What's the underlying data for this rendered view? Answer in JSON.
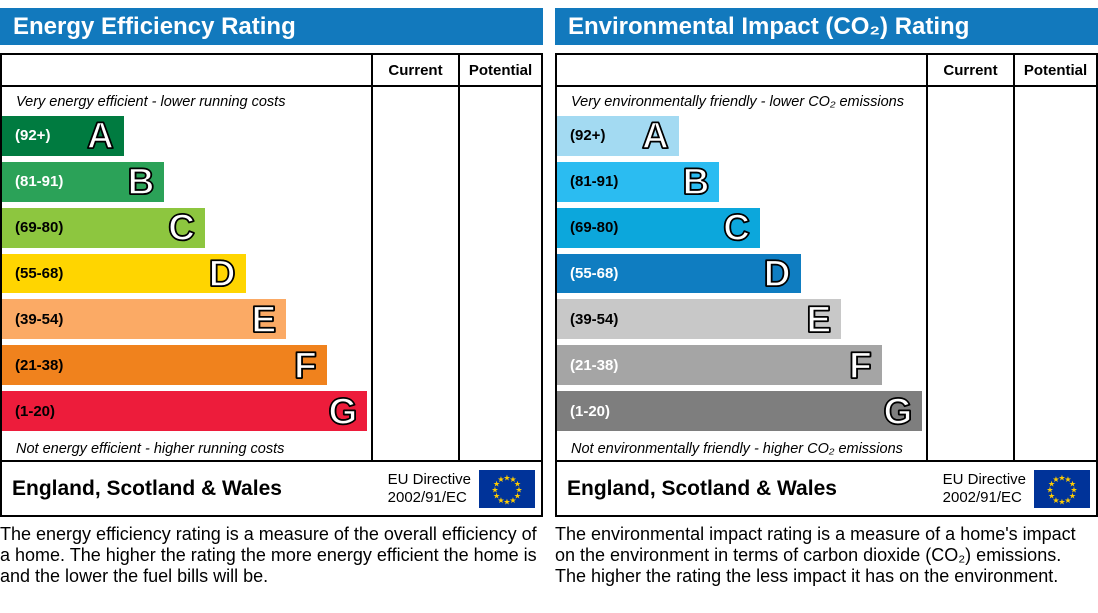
{
  "colors": {
    "header_blue": "#1279bd",
    "border_black": "#000000",
    "eu_flag_blue": "#003399",
    "eu_star_yellow": "#ffcc00"
  },
  "panels": [
    {
      "title": "Energy Efficiency Rating",
      "columns": {
        "current": "Current",
        "potential": "Potential"
      },
      "top_note": "Very energy efficient - lower running costs",
      "bottom_note": "Not energy efficient - higher running costs",
      "bands": [
        {
          "letter": "A",
          "range": "(92+)",
          "width_pct": 33,
          "color": "#007b40",
          "text_color": "#ffffff"
        },
        {
          "letter": "B",
          "range": "(81-91)",
          "width_pct": 44,
          "color": "#2ba258",
          "text_color": "#ffffff"
        },
        {
          "letter": "C",
          "range": "(69-80)",
          "width_pct": 55,
          "color": "#8dc63f",
          "text_color": "#000000"
        },
        {
          "letter": "D",
          "range": "(55-68)",
          "width_pct": 66,
          "color": "#ffd500",
          "text_color": "#000000"
        },
        {
          "letter": "E",
          "range": "(39-54)",
          "width_pct": 77,
          "color": "#fbaa65",
          "text_color": "#000000"
        },
        {
          "letter": "F",
          "range": "(21-38)",
          "width_pct": 88,
          "color": "#f0821d",
          "text_color": "#000000"
        },
        {
          "letter": "G",
          "range": "(1-20)",
          "width_pct": 99,
          "color": "#ed1c3b",
          "text_color": "#000000"
        }
      ],
      "footer": {
        "region": "England, Scotland & Wales",
        "directive_line1": "EU Directive",
        "directive_line2": "2002/91/EC"
      },
      "description": "The energy efficiency rating is a measure of the overall efficiency of a home. The higher the rating the more energy efficient the home is and the lower the fuel bills will be."
    },
    {
      "title": "Environmental Impact (CO₂) Rating",
      "columns": {
        "current": "Current",
        "potential": "Potential"
      },
      "top_note": "Very environmentally friendly - lower CO₂ emissions",
      "bottom_note": "Not environmentally friendly - higher CO₂ emissions",
      "bands": [
        {
          "letter": "A",
          "range": "(92+)",
          "width_pct": 33,
          "color": "#a3daf2",
          "text_color": "#000000"
        },
        {
          "letter": "B",
          "range": "(81-91)",
          "width_pct": 44,
          "color": "#2bbcf1",
          "text_color": "#000000"
        },
        {
          "letter": "C",
          "range": "(69-80)",
          "width_pct": 55,
          "color": "#0ca7dc",
          "text_color": "#000000"
        },
        {
          "letter": "D",
          "range": "(55-68)",
          "width_pct": 66,
          "color": "#0f7dc1",
          "text_color": "#ffffff"
        },
        {
          "letter": "E",
          "range": "(39-54)",
          "width_pct": 77,
          "color": "#c8c8c8",
          "text_color": "#000000"
        },
        {
          "letter": "F",
          "range": "(21-38)",
          "width_pct": 88,
          "color": "#a5a5a5",
          "text_color": "#ffffff"
        },
        {
          "letter": "G",
          "range": "(1-20)",
          "width_pct": 99,
          "color": "#7e7e7e",
          "text_color": "#ffffff"
        }
      ],
      "footer": {
        "region": "England, Scotland & Wales",
        "directive_line1": "EU Directive",
        "directive_line2": "2002/91/EC"
      },
      "description": "The environmental impact rating is a measure of a home's impact on the environment in terms of carbon dioxide (CO₂) emissions. The higher the rating the less impact it has on the environment."
    }
  ],
  "chart_data": [
    {
      "type": "bar",
      "title": "Energy Efficiency Rating",
      "categories": [
        "A",
        "B",
        "C",
        "D",
        "E",
        "F",
        "G"
      ],
      "tick_labels": [
        "(92+)",
        "(81-91)",
        "(69-80)",
        "(55-68)",
        "(39-54)",
        "(21-38)",
        "(1-20)"
      ],
      "values": [
        33,
        44,
        55,
        66,
        77,
        88,
        99
      ],
      "value_meaning": "bar length as percent of band column width",
      "bar_colors": [
        "#007b40",
        "#2ba258",
        "#8dc63f",
        "#ffd500",
        "#fbaa65",
        "#f0821d",
        "#ed1c3b"
      ],
      "columns": [
        "Current",
        "Potential"
      ],
      "current_value": null,
      "potential_value": null,
      "annotations": [
        "Very energy efficient - lower running costs",
        "Not energy efficient - higher running costs"
      ],
      "footer": "England, Scotland & Wales — EU Directive 2002/91/EC"
    },
    {
      "type": "bar",
      "title": "Environmental Impact (CO₂) Rating",
      "categories": [
        "A",
        "B",
        "C",
        "D",
        "E",
        "F",
        "G"
      ],
      "tick_labels": [
        "(92+)",
        "(81-91)",
        "(69-80)",
        "(55-68)",
        "(39-54)",
        "(21-38)",
        "(1-20)"
      ],
      "values": [
        33,
        44,
        55,
        66,
        77,
        88,
        99
      ],
      "value_meaning": "bar length as percent of band column width",
      "bar_colors": [
        "#a3daf2",
        "#2bbcf1",
        "#0ca7dc",
        "#0f7dc1",
        "#c8c8c8",
        "#a5a5a5",
        "#7e7e7e"
      ],
      "columns": [
        "Current",
        "Potential"
      ],
      "current_value": null,
      "potential_value": null,
      "annotations": [
        "Very environmentally friendly - lower CO₂ emissions",
        "Not environmentally friendly - higher CO₂ emissions"
      ],
      "footer": "England, Scotland & Wales — EU Directive 2002/91/EC"
    }
  ]
}
